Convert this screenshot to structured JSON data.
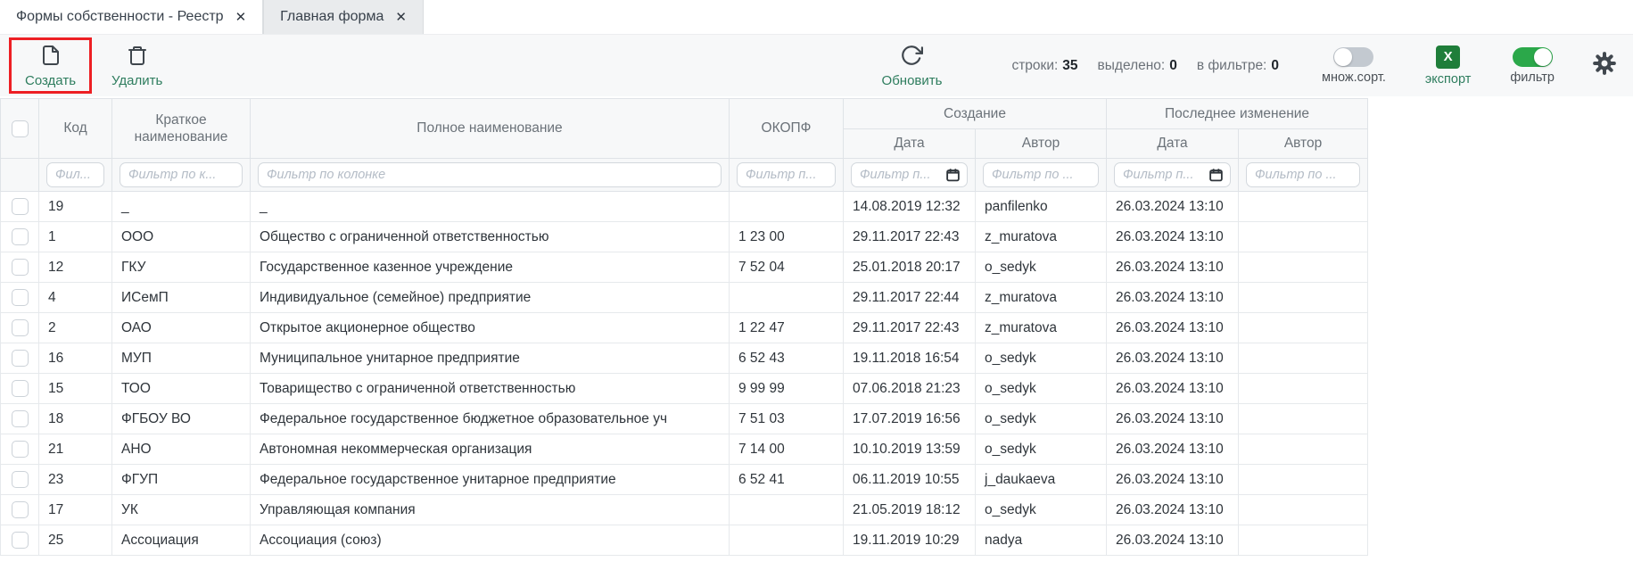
{
  "window": {
    "tabs": [
      {
        "label": "Формы собственности - Реестр",
        "close": "✕",
        "active": true
      },
      {
        "label": "Главная форма",
        "close": "✕",
        "active": false
      }
    ]
  },
  "toolbar": {
    "create_label": "Создать",
    "delete_label": "Удалить",
    "refresh_label": "Обновить",
    "rows_label": "строки:",
    "rows_value": "35",
    "selected_label": "выделено:",
    "selected_value": "0",
    "in_filter_label": "в фильтре:",
    "in_filter_value": "0",
    "multisort_label": "множ.сорт.",
    "multisort_on": false,
    "export_label": "экспорт",
    "export_icon_letter": "X",
    "filter_label": "фильтр",
    "filter_on": true
  },
  "icons": {
    "create": "document-icon",
    "delete": "trash-icon",
    "refresh": "refresh-icon",
    "export": "excel-icon",
    "settings": "gear-icon",
    "calendar": "calendar-icon",
    "close": "✕"
  },
  "table": {
    "group_creation": "Создание",
    "group_last_change": "Последнее изменение",
    "col_code": "Код",
    "col_short_name": "Краткое наименование",
    "col_full_name": "Полное наименование",
    "col_okopf": "ОКОПФ",
    "col_date_created": "Дата",
    "col_author_created": "Автор",
    "col_date_changed": "Дата",
    "col_author_changed": "Автор",
    "filter_placeholders": [
      "Фил...",
      "Фильтр по к...",
      "Фильтр по колонке",
      "Фильтр п...",
      "Фильтр п...",
      "Фильтр по ...",
      "Фильтр п...",
      "Фильтр по ..."
    ],
    "rows": [
      [
        "19",
        "_",
        "_",
        "",
        "14.08.2019 12:32",
        "panfilenko",
        "26.03.2024 13:10",
        ""
      ],
      [
        "1",
        "ООО",
        "Общество с ограниченной ответственностью",
        "1 23 00",
        "29.11.2017 22:43",
        "z_muratova",
        "26.03.2024 13:10",
        ""
      ],
      [
        "12",
        "ГКУ",
        "Государственное казенное учреждение",
        "7 52 04",
        "25.01.2018 20:17",
        "o_sedyk",
        "26.03.2024 13:10",
        ""
      ],
      [
        "4",
        "ИСемП",
        "Индивидуальное (семейное) предприятие",
        "",
        "29.11.2017 22:44",
        "z_muratova",
        "26.03.2024 13:10",
        ""
      ],
      [
        "2",
        "ОАО",
        "Открытое акционерное общество",
        "1 22 47",
        "29.11.2017 22:43",
        "z_muratova",
        "26.03.2024 13:10",
        ""
      ],
      [
        "16",
        "МУП",
        "Муниципальное унитарное предприятие",
        "6 52 43",
        "19.11.2018 16:54",
        "o_sedyk",
        "26.03.2024 13:10",
        ""
      ],
      [
        "15",
        "ТОО",
        "Товарищество с ограниченной ответственностью",
        "9 99 99",
        "07.06.2018 21:23",
        "o_sedyk",
        "26.03.2024 13:10",
        ""
      ],
      [
        "18",
        "ФГБОУ ВО",
        "Федеральное государственное бюджетное образовательное уч",
        "7 51 03",
        "17.07.2019 16:56",
        "o_sedyk",
        "26.03.2024 13:10",
        ""
      ],
      [
        "21",
        "АНО",
        "Автономная некоммерческая организация",
        "7 14 00",
        "10.10.2019 13:59",
        "o_sedyk",
        "26.03.2024 13:10",
        ""
      ],
      [
        "23",
        "ФГУП",
        "Федеральное государственное унитарное предприятие",
        "6 52 41",
        "06.11.2019 10:55",
        "j_daukaeva",
        "26.03.2024 13:10",
        ""
      ],
      [
        "17",
        "УК",
        "Управляющая компания",
        "",
        "21.05.2019 18:12",
        "o_sedyk",
        "26.03.2024 13:10",
        ""
      ],
      [
        "25",
        "Ассоциация",
        "Ассоциация (союз)",
        "",
        "19.11.2019 10:29",
        "nadya",
        "26.03.2024 13:10",
        ""
      ]
    ]
  },
  "colors": {
    "accent_green": "#2e7d5e",
    "toggle_on_green": "#2ba84a",
    "excel_green": "#1f7e3a",
    "highlight_red": "#ed1f24"
  }
}
